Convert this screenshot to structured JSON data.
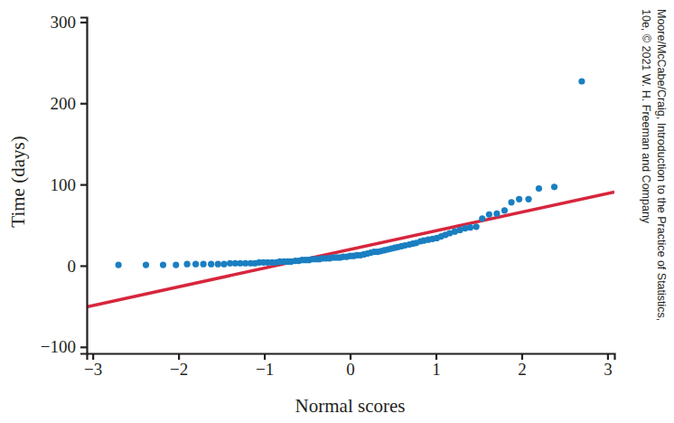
{
  "chart_data": {
    "type": "scatter",
    "x_label": "Normal scores",
    "y_label": "Time (days)",
    "credit": [
      "Moore/McCabe/Craig, Introduction to the Practice of Statistics,",
      "10e, © 2021 W. H. Freeman and Company"
    ],
    "xlim": [
      -3.07,
      3.08
    ],
    "ylim": [
      -108,
      306
    ],
    "xticks": [
      -3,
      -2,
      -1,
      0,
      1,
      2,
      3
    ],
    "yticks": [
      -100,
      0,
      100,
      200,
      300
    ],
    "grid": false,
    "series": [
      {
        "type": "line",
        "color": "#d7263d",
        "line_style": "solid",
        "x": [
          -3.07,
          3.08
        ],
        "values": [
          -50.6,
          90.8
        ]
      },
      {
        "type": "scatter",
        "color": "#1a7fc1",
        "marker": "circle",
        "x": [
          -2.7,
          -2.38,
          -2.18,
          -2.03,
          -1.9,
          -1.8,
          -1.71,
          -1.62,
          -1.54,
          -1.47,
          -1.4,
          -1.34,
          -1.28,
          -1.22,
          -1.16,
          -1.11,
          -1.06,
          -1.01,
          -0.96,
          -0.91,
          -0.86,
          -0.82,
          -0.77,
          -0.73,
          -0.69,
          -0.64,
          -0.6,
          -0.56,
          -0.52,
          -0.48,
          -0.44,
          -0.4,
          -0.36,
          -0.32,
          -0.28,
          -0.24,
          -0.2,
          -0.16,
          -0.12,
          -0.08,
          -0.04,
          0,
          0.04,
          0.08,
          0.12,
          0.16,
          0.2,
          0.24,
          0.28,
          0.32,
          0.36,
          0.4,
          0.44,
          0.48,
          0.52,
          0.56,
          0.6,
          0.64,
          0.69,
          0.73,
          0.77,
          0.82,
          0.86,
          0.91,
          0.96,
          1.01,
          1.06,
          1.11,
          1.16,
          1.22,
          1.28,
          1.34,
          1.4,
          1.47,
          1.54,
          1.62,
          1.71,
          1.8,
          1.88,
          1.97,
          2.08,
          2.2,
          2.38,
          2.7
        ],
        "values": [
          1,
          1,
          1,
          1,
          2,
          2,
          2,
          2,
          2,
          2,
          3,
          3,
          3,
          3,
          3,
          3,
          4,
          4,
          4,
          4,
          4,
          5,
          5,
          5,
          5,
          6,
          6,
          7,
          7,
          7,
          8,
          8,
          8,
          9,
          9,
          9,
          10,
          10,
          10,
          11,
          11,
          12,
          12,
          13,
          13,
          14,
          15,
          16,
          17,
          17,
          18,
          19,
          20,
          21,
          22,
          23,
          24,
          25,
          26,
          27,
          28,
          30,
          31,
          32,
          33,
          34,
          36,
          38,
          40,
          42,
          44,
          46,
          47,
          48,
          58,
          63,
          64,
          68,
          78,
          82,
          82,
          95,
          97,
          227
        ]
      }
    ]
  }
}
